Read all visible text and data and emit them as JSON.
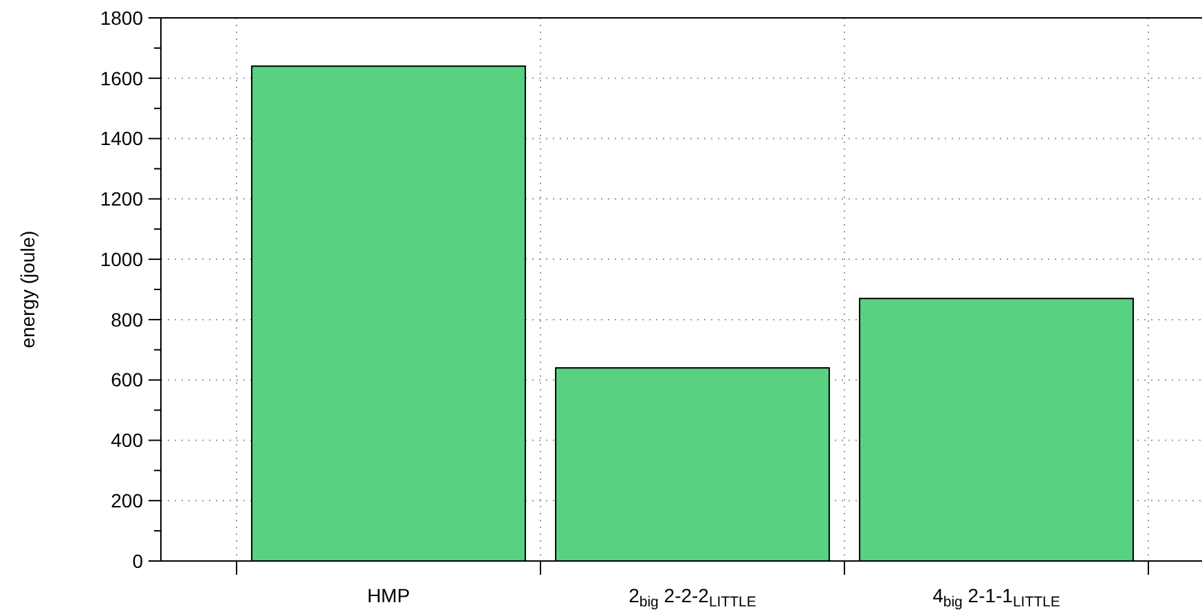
{
  "chart_data": {
    "type": "bar",
    "ylabel": "energy (joule)",
    "categories": [
      "HMP",
      "2$_{big}$ 2-2-2$_{LITTLE}$",
      "4$_{big}$ 2-1-1$_{LITTLE}$"
    ],
    "values": [
      1640,
      640,
      870
    ],
    "color": "#58d181",
    "ylim": [
      0,
      1800
    ],
    "yticks": [
      0,
      200,
      400,
      600,
      800,
      1000,
      1200,
      1400,
      1600,
      1800
    ],
    "grid": true
  }
}
